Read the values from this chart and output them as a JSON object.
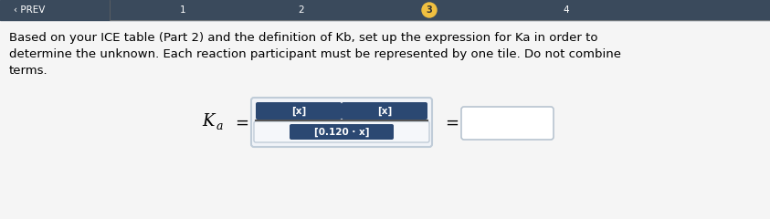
{
  "background_color": "#e8e8e8",
  "main_bg": "#f5f5f5",
  "text_lines": [
    "Based on your ICE table (Part 2) and the definition of Kb, set up the expression for Ka in order to",
    "determine the unknown. Each reaction participant must be represented by one tile. Do not combine",
    "terms."
  ],
  "tile_color": "#2b4872",
  "tile_text_color": "#ffffff",
  "tile_top_left": "[x]",
  "tile_top_right": "[x]",
  "tile_bottom": "[0.120 · x]",
  "outer_box_bg": "#f0f3f8",
  "outer_box_border": "#c0ccd8",
  "denom_box_bg": "#f5f7fa",
  "denom_box_border": "#c0ccd8",
  "result_box_bg": "#ffffff",
  "result_box_border": "#b8c4d0",
  "top_bar_color": "#3a4a5c",
  "top_bar_height": 22,
  "nav_text_color": "#ffffff",
  "active_step_color": "#f0c040",
  "active_step_text": "#333333",
  "fraction_line_color": "#555555",
  "ka_fontsize": 13,
  "ka_sub_fontsize": 9,
  "tile_fontsize": 7.5,
  "text_fontsize": 9.5
}
